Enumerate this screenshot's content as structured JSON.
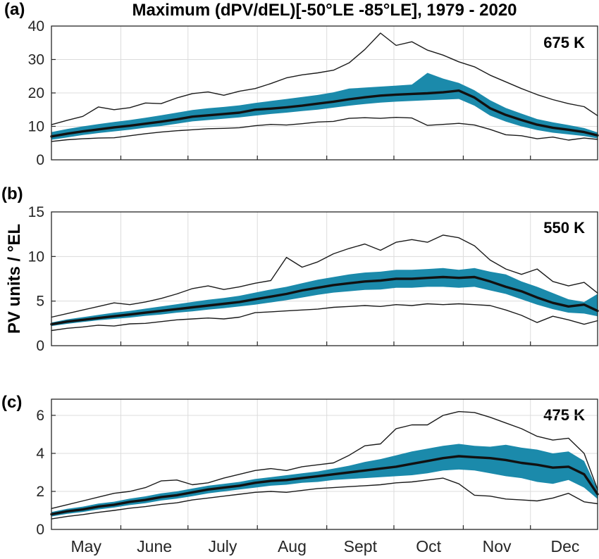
{
  "title": "Maximum (dPV/dEL)[-50°LE -85°LE], 1979 - 2020",
  "ylabel": "PV units / °EL",
  "colors": {
    "band_fill": "#1b8aab",
    "mean_line": "#111111",
    "envelope_line": "#1a1a1a",
    "grid": "#dcdcdc",
    "axis": "#262626",
    "tick_label": "#262626"
  },
  "x_axis": {
    "range_days": 244,
    "month_labels": [
      "May",
      "June",
      "July",
      "Aug",
      "Sept",
      "Oct",
      "Nov",
      "Dec"
    ],
    "month_label_days": [
      15.5,
      46,
      76.5,
      107.5,
      138,
      168.5,
      199,
      229.5
    ],
    "month_boundary_days": [
      31,
      61,
      92,
      123,
      153,
      184,
      214
    ]
  },
  "chart_data": [
    {
      "type": "line",
      "panel": "(a)",
      "level_label": "675 K",
      "ylim": [
        0,
        40
      ],
      "yticks": [
        0,
        10,
        20,
        30,
        40
      ],
      "x_days_from_may1": [
        0,
        7,
        14,
        21,
        28,
        35,
        42,
        49,
        56,
        63,
        70,
        77,
        84,
        91,
        98,
        105,
        112,
        119,
        126,
        133,
        140,
        147,
        154,
        161,
        168,
        175,
        182,
        189,
        196,
        203,
        210,
        217,
        224,
        231,
        238,
        244
      ],
      "series": [
        {
          "name": "max",
          "values": [
            10.5,
            11.8,
            13.0,
            15.8,
            15.0,
            15.6,
            17.0,
            16.8,
            18.5,
            19.8,
            20.3,
            19.3,
            20.5,
            21.3,
            22.8,
            24.5,
            25.4,
            26.0,
            26.8,
            29.0,
            33.0,
            37.9,
            34.2,
            35.3,
            32.8,
            31.3,
            29.3,
            27.8,
            25.3,
            23.3,
            21.3,
            19.5,
            18.0,
            16.8,
            15.9,
            13.2
          ]
        },
        {
          "name": "band_top",
          "values": [
            8.3,
            9.2,
            10.0,
            10.7,
            11.3,
            11.9,
            12.6,
            13.3,
            14.1,
            14.9,
            15.4,
            15.8,
            16.3,
            17.0,
            17.6,
            18.2,
            18.8,
            19.4,
            20.2,
            21.3,
            21.6,
            21.9,
            22.2,
            22.5,
            26.0,
            24.3,
            23.0,
            20.8,
            17.8,
            15.5,
            13.8,
            12.2,
            11.2,
            10.4,
            9.5,
            8.2
          ]
        },
        {
          "name": "mean",
          "values": [
            7.0,
            7.8,
            8.5,
            9.1,
            9.7,
            10.2,
            10.8,
            11.4,
            12.1,
            12.9,
            13.3,
            13.7,
            14.1,
            15.0,
            15.3,
            15.7,
            16.2,
            16.8,
            17.4,
            18.1,
            18.7,
            19.2,
            19.5,
            19.7,
            19.9,
            20.2,
            20.7,
            18.6,
            15.4,
            13.4,
            11.9,
            10.5,
            9.6,
            9.0,
            8.3,
            7.3
          ]
        },
        {
          "name": "band_bottom",
          "values": [
            6.0,
            6.7,
            7.4,
            8.0,
            8.5,
            9.0,
            9.6,
            10.1,
            10.8,
            11.5,
            11.9,
            12.3,
            12.7,
            13.2,
            13.7,
            14.1,
            14.6,
            15.0,
            15.6,
            16.2,
            16.7,
            17.1,
            17.4,
            17.6,
            17.8,
            18.0,
            18.2,
            16.2,
            13.2,
            11.4,
            10.0,
            8.9,
            8.1,
            7.6,
            7.1,
            6.4
          ]
        },
        {
          "name": "min",
          "values": [
            5.5,
            6.0,
            6.3,
            6.5,
            6.6,
            7.2,
            7.8,
            8.3,
            8.7,
            9.0,
            9.3,
            9.4,
            9.6,
            10.2,
            10.6,
            10.4,
            10.8,
            11.3,
            11.5,
            12.4,
            12.6,
            12.4,
            12.7,
            12.5,
            10.3,
            10.6,
            10.9,
            10.4,
            9.1,
            7.5,
            7.2,
            6.3,
            6.8,
            5.9,
            6.5,
            6.1
          ]
        }
      ]
    },
    {
      "type": "line",
      "panel": "(b)",
      "level_label": "550 K",
      "ylim": [
        0,
        15
      ],
      "yticks": [
        0,
        5,
        10,
        15
      ],
      "x_days_from_may1": [
        0,
        7,
        14,
        21,
        28,
        35,
        42,
        49,
        56,
        63,
        70,
        77,
        84,
        91,
        98,
        105,
        112,
        119,
        126,
        133,
        140,
        147,
        154,
        161,
        168,
        175,
        182,
        189,
        196,
        203,
        210,
        217,
        224,
        231,
        238,
        244
      ],
      "series": [
        {
          "name": "max",
          "values": [
            3.2,
            3.6,
            4.0,
            4.4,
            4.8,
            4.6,
            4.9,
            5.3,
            5.8,
            6.4,
            6.7,
            6.3,
            6.6,
            7.0,
            7.3,
            9.9,
            8.8,
            9.4,
            10.3,
            10.9,
            11.4,
            10.7,
            11.6,
            11.9,
            11.6,
            12.4,
            12.1,
            11.2,
            9.6,
            8.6,
            8.0,
            8.6,
            7.2,
            6.7,
            7.1,
            5.9
          ]
        },
        {
          "name": "band_top",
          "values": [
            2.6,
            2.95,
            3.2,
            3.45,
            3.7,
            3.9,
            4.15,
            4.4,
            4.65,
            4.9,
            5.15,
            5.35,
            5.6,
            5.95,
            6.3,
            6.6,
            7.0,
            7.4,
            7.7,
            8.0,
            8.2,
            8.3,
            8.5,
            8.5,
            8.6,
            8.7,
            8.5,
            8.7,
            8.3,
            8.0,
            7.2,
            6.6,
            5.9,
            5.2,
            4.9,
            5.8
          ]
        },
        {
          "name": "mean",
          "values": [
            2.4,
            2.7,
            2.9,
            3.1,
            3.3,
            3.5,
            3.7,
            3.9,
            4.1,
            4.3,
            4.5,
            4.7,
            4.9,
            5.2,
            5.5,
            5.8,
            6.2,
            6.5,
            6.8,
            7.0,
            7.2,
            7.3,
            7.5,
            7.5,
            7.6,
            7.7,
            7.6,
            7.7,
            7.2,
            6.6,
            6.1,
            5.4,
            4.8,
            4.4,
            4.6,
            3.9
          ]
        },
        {
          "name": "band_bottom",
          "values": [
            2.2,
            2.45,
            2.65,
            2.85,
            3.0,
            3.15,
            3.35,
            3.5,
            3.7,
            3.85,
            4.05,
            4.2,
            4.4,
            4.6,
            4.85,
            5.1,
            5.4,
            5.7,
            5.95,
            6.1,
            6.25,
            6.3,
            6.5,
            6.5,
            6.6,
            6.6,
            6.5,
            6.6,
            6.2,
            5.8,
            5.2,
            4.6,
            4.1,
            3.7,
            3.6,
            3.3
          ]
        },
        {
          "name": "min",
          "values": [
            1.7,
            1.95,
            2.1,
            2.3,
            2.2,
            2.45,
            2.5,
            2.7,
            2.9,
            3.0,
            3.1,
            3.0,
            3.2,
            3.7,
            3.8,
            3.9,
            4.0,
            4.1,
            4.3,
            4.4,
            4.5,
            4.4,
            4.6,
            4.5,
            4.7,
            4.6,
            4.7,
            4.6,
            4.5,
            4.0,
            3.4,
            2.6,
            3.3,
            2.9,
            2.4,
            2.8
          ]
        }
      ]
    },
    {
      "type": "line",
      "panel": "(c)",
      "level_label": "475 K",
      "ylim": [
        0,
        6.85
      ],
      "yticks": [
        0,
        2,
        4,
        6
      ],
      "x_days_from_may1": [
        0,
        7,
        14,
        21,
        28,
        35,
        42,
        49,
        56,
        63,
        70,
        77,
        84,
        91,
        98,
        105,
        112,
        119,
        126,
        133,
        140,
        147,
        154,
        161,
        168,
        175,
        182,
        189,
        196,
        203,
        210,
        217,
        224,
        231,
        238,
        244
      ],
      "series": [
        {
          "name": "max",
          "values": [
            1.1,
            1.3,
            1.5,
            1.7,
            1.9,
            2.0,
            2.2,
            2.55,
            2.6,
            2.35,
            2.45,
            2.7,
            2.9,
            3.1,
            3.2,
            3.1,
            3.3,
            3.4,
            3.5,
            3.9,
            4.4,
            4.5,
            5.3,
            5.5,
            5.5,
            6.0,
            6.2,
            6.15,
            5.9,
            5.6,
            5.3,
            4.9,
            4.7,
            4.8,
            4.0,
            2.1
          ]
        },
        {
          "name": "band_top",
          "values": [
            0.92,
            1.08,
            1.2,
            1.36,
            1.46,
            1.62,
            1.74,
            1.9,
            2.0,
            2.15,
            2.3,
            2.4,
            2.5,
            2.65,
            2.75,
            2.85,
            2.95,
            3.05,
            3.2,
            3.35,
            3.55,
            3.7,
            3.9,
            4.1,
            4.25,
            4.4,
            4.5,
            4.4,
            4.35,
            4.45,
            4.3,
            4.2,
            4.0,
            4.1,
            3.6,
            2.1
          ]
        },
        {
          "name": "mean",
          "values": [
            0.8,
            0.95,
            1.05,
            1.2,
            1.3,
            1.45,
            1.55,
            1.7,
            1.8,
            1.95,
            2.1,
            2.2,
            2.3,
            2.45,
            2.55,
            2.6,
            2.7,
            2.8,
            2.9,
            3.0,
            3.1,
            3.2,
            3.3,
            3.45,
            3.6,
            3.75,
            3.85,
            3.8,
            3.75,
            3.65,
            3.5,
            3.4,
            3.25,
            3.3,
            2.9,
            1.85
          ]
        },
        {
          "name": "band_bottom",
          "values": [
            0.68,
            0.82,
            0.92,
            1.05,
            1.15,
            1.28,
            1.38,
            1.52,
            1.62,
            1.75,
            1.9,
            2.0,
            2.1,
            2.2,
            2.3,
            2.35,
            2.45,
            2.5,
            2.6,
            2.65,
            2.7,
            2.75,
            2.8,
            2.85,
            2.95,
            3.1,
            3.15,
            3.1,
            2.95,
            2.8,
            2.7,
            2.5,
            2.4,
            2.6,
            2.2,
            1.6
          ]
        },
        {
          "name": "min",
          "values": [
            0.55,
            0.68,
            0.78,
            0.9,
            1.0,
            1.12,
            1.2,
            1.32,
            1.4,
            1.55,
            1.65,
            1.75,
            1.85,
            1.95,
            2.0,
            1.95,
            2.05,
            2.15,
            2.2,
            2.25,
            2.3,
            2.35,
            2.45,
            2.5,
            2.6,
            2.7,
            2.4,
            1.8,
            1.75,
            1.6,
            1.55,
            1.5,
            1.65,
            1.9,
            1.45,
            1.35
          ]
        }
      ]
    }
  ]
}
